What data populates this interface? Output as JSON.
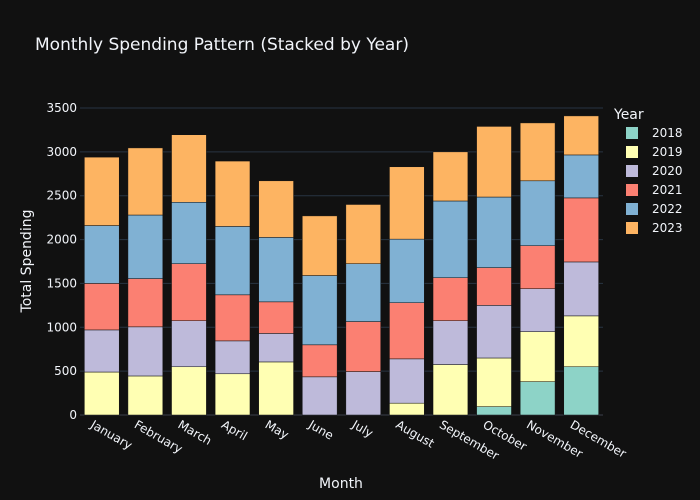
{
  "chart_data": {
    "type": "bar",
    "stacked": true,
    "title": "Monthly Spending Pattern (Stacked by Year)",
    "xlabel": "Month",
    "ylabel": "Total Spending",
    "ylim": [
      0,
      3500
    ],
    "yticks": [
      0,
      500,
      1000,
      1500,
      2000,
      2500,
      3000,
      3500
    ],
    "grid": true,
    "legend_title": "Year",
    "legend_position": "right",
    "categories": [
      "January",
      "February",
      "March",
      "April",
      "May",
      "June",
      "July",
      "August",
      "September",
      "October",
      "November",
      "December"
    ],
    "series": [
      {
        "name": "2018",
        "color": "#8dd3c7",
        "values": [
          0,
          0,
          0,
          0,
          0,
          0,
          0,
          0,
          0,
          95,
          380,
          550
        ]
      },
      {
        "name": "2019",
        "color": "#ffffb3",
        "values": [
          490,
          445,
          550,
          470,
          605,
          0,
          0,
          135,
          575,
          555,
          570,
          580
        ]
      },
      {
        "name": "2020",
        "color": "#bebada",
        "values": [
          480,
          560,
          525,
          375,
          325,
          435,
          495,
          505,
          500,
          600,
          490,
          615
        ]
      },
      {
        "name": "2021",
        "color": "#fb8072",
        "values": [
          530,
          550,
          650,
          525,
          360,
          365,
          570,
          640,
          490,
          430,
          490,
          730
        ]
      },
      {
        "name": "2022",
        "color": "#80b1d3",
        "values": [
          660,
          725,
          700,
          780,
          735,
          790,
          660,
          725,
          875,
          805,
          740,
          490
        ]
      },
      {
        "name": "2023",
        "color": "#fdb462",
        "values": [
          780,
          765,
          770,
          745,
          645,
          680,
          675,
          825,
          560,
          805,
          660,
          445
        ]
      }
    ]
  }
}
